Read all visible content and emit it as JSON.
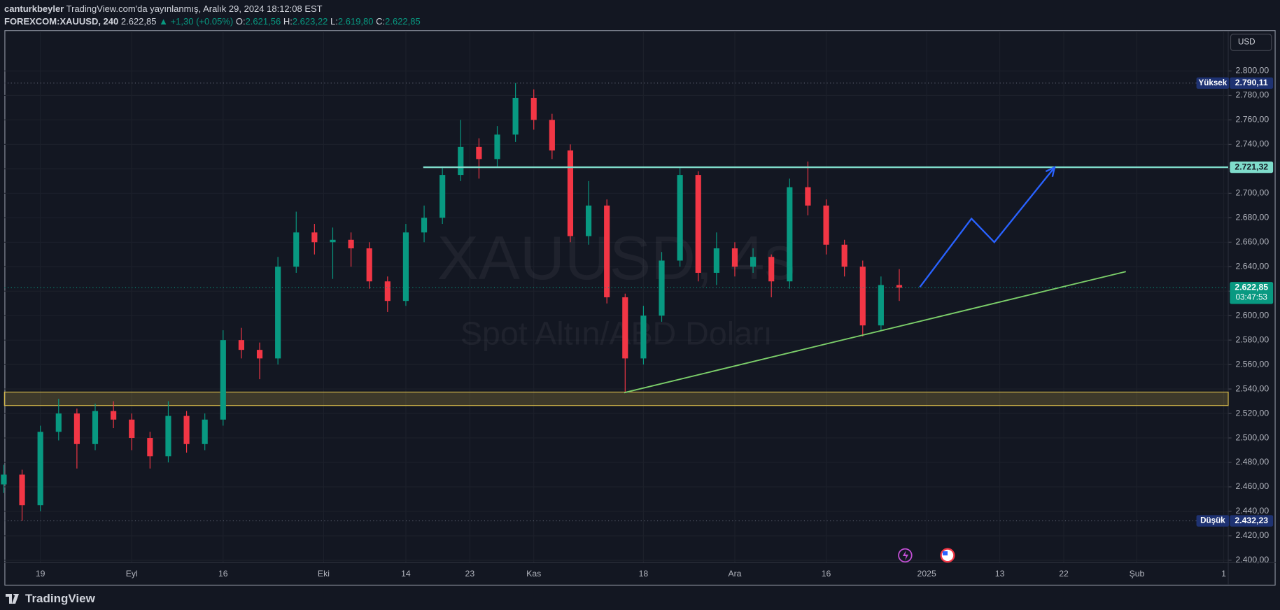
{
  "header": {
    "author": "canturkbeyler",
    "published": "TradingView.com'da yayınlanmış, Aralık 29, 2024 18:12:08 EST",
    "symbol": "FOREXCOM:XAUUSD, 240",
    "last": "2.622,85",
    "change": "▲ +1,30 (+0.05%)",
    "open_label": "O:",
    "open": "2.621,56",
    "high_label": "H:",
    "high": "2.623,22",
    "low_label": "L:",
    "low": "2.619,80",
    "close_label": "C:",
    "close": "2.622,85"
  },
  "footer": {
    "brand": "TradingView"
  },
  "chart_data": {
    "type": "candlestick",
    "watermark": "XAUUSD, 4s",
    "watermark_subtitle": "Spot Altın/ABD Doları",
    "currency": "USD",
    "up_color": "#089981",
    "down_color": "#f23645",
    "grid": true,
    "x": [
      -4,
      -2,
      0,
      2,
      4,
      6,
      8,
      10,
      12,
      14,
      16,
      18,
      20,
      22,
      24,
      26,
      28,
      30,
      32,
      34,
      36,
      38,
      40,
      42,
      44,
      46,
      48,
      50,
      52,
      54,
      56,
      58,
      60,
      62,
      64,
      66,
      68,
      70,
      72,
      74,
      76,
      78,
      80,
      82,
      84,
      86,
      88,
      90,
      92,
      94
    ],
    "open": [
      2462,
      2470,
      2445,
      2505,
      2520,
      2495,
      2522,
      2515,
      2500,
      2485,
      2518,
      2495,
      2515,
      2580,
      2572,
      2565,
      2640,
      2668,
      2660,
      2662,
      2655,
      2628,
      2612,
      2668,
      2680,
      2715,
      2738,
      2728,
      2748,
      2778,
      2760,
      2735,
      2665,
      2690,
      2615,
      2565,
      2600,
      2645,
      2715,
      2635,
      2655,
      2640,
      2648,
      2628,
      2705,
      2690,
      2658,
      2640,
      2592,
      2625
    ],
    "high": [
      2478,
      2474,
      2510,
      2532,
      2524,
      2528,
      2530,
      2520,
      2505,
      2530,
      2522,
      2520,
      2588,
      2590,
      2578,
      2648,
      2685,
      2675,
      2672,
      2668,
      2660,
      2632,
      2675,
      2690,
      2722,
      2760,
      2745,
      2755,
      2790.11,
      2785,
      2765,
      2740,
      2710,
      2695,
      2618,
      2608,
      2652,
      2721,
      2718,
      2668,
      2660,
      2655,
      2650,
      2712,
      2726,
      2695,
      2662,
      2645,
      2632,
      2638
    ],
    "low": [
      2455,
      2432.23,
      2440,
      2498,
      2475,
      2490,
      2508,
      2490,
      2475,
      2480,
      2488,
      2490,
      2510,
      2565,
      2548,
      2560,
      2635,
      2650,
      2630,
      2640,
      2622,
      2603,
      2608,
      2660,
      2675,
      2710,
      2712,
      2722,
      2742,
      2752,
      2728,
      2660,
      2658,
      2610,
      2537,
      2560,
      2595,
      2640,
      2628,
      2625,
      2632,
      2635,
      2615,
      2622,
      2682,
      2650,
      2632,
      2583,
      2588,
      2612
    ],
    "close": [
      2470,
      2445,
      2505,
      2520,
      2495,
      2522,
      2515,
      2500,
      2485,
      2518,
      2495,
      2515,
      2580,
      2572,
      2565,
      2640,
      2668,
      2660,
      2662,
      2655,
      2628,
      2612,
      2668,
      2680,
      2715,
      2738,
      2728,
      2748,
      2778,
      2760,
      2735,
      2665,
      2690,
      2615,
      2565,
      2600,
      2645,
      2715,
      2635,
      2655,
      2640,
      2648,
      2628,
      2705,
      2690,
      2658,
      2640,
      2592,
      2625,
      2622.85
    ],
    "xlim": [
      -3.93,
      130
    ],
    "xticks": [
      {
        "value": 0,
        "label": "19"
      },
      {
        "value": 10,
        "label": "Eyl"
      },
      {
        "value": 20,
        "label": "16"
      },
      {
        "value": 31,
        "label": "Eki"
      },
      {
        "value": 40,
        "label": "14"
      },
      {
        "value": 47,
        "label": "23"
      },
      {
        "value": 54,
        "label": "Kas"
      },
      {
        "value": 66,
        "label": "18"
      },
      {
        "value": 76,
        "label": "Ara"
      },
      {
        "value": 86,
        "label": "16"
      },
      {
        "value": 97,
        "label": "2025"
      },
      {
        "value": 105,
        "label": "13"
      },
      {
        "value": 112,
        "label": "22"
      },
      {
        "value": 120,
        "label": "Şub"
      },
      {
        "value": 129.5,
        "label": "1"
      }
    ],
    "ylim": [
      2398,
      2832.7
    ],
    "yticks": [
      {
        "value": 2400,
        "label": "2.400,00"
      },
      {
        "value": 2420,
        "label": "2.420,00"
      },
      {
        "value": 2440,
        "label": "2.440,00"
      },
      {
        "value": 2460,
        "label": "2.460,00"
      },
      {
        "value": 2480,
        "label": "2.480,00"
      },
      {
        "value": 2500,
        "label": "2.500,00"
      },
      {
        "value": 2520,
        "label": "2.520,00"
      },
      {
        "value": 2540,
        "label": "2.540,00"
      },
      {
        "value": 2560,
        "label": "2.560,00"
      },
      {
        "value": 2580,
        "label": "2.580,00"
      },
      {
        "value": 2600,
        "label": "2.600,00"
      },
      {
        "value": 2620,
        "label": "2.620,00"
      },
      {
        "value": 2640,
        "label": "2.640,00"
      },
      {
        "value": 2660,
        "label": "2.660,00"
      },
      {
        "value": 2680,
        "label": "2.680,00"
      },
      {
        "value": 2700,
        "label": "2.700,00"
      },
      {
        "value": 2720,
        "label": "2.720,00"
      },
      {
        "value": 2740,
        "label": "2.740,00"
      },
      {
        "value": 2760,
        "label": "2.760,00"
      },
      {
        "value": 2780,
        "label": "2.780,00"
      },
      {
        "value": 2800,
        "label": "2.800,00"
      }
    ],
    "price_tags": [
      {
        "name": "Yüksek",
        "value": 2790.11,
        "label": "2.790,11",
        "color": "#1e3272"
      },
      {
        "name": "Düşük",
        "value": 2432.23,
        "label": "2.432,23",
        "color": "#1e3272"
      }
    ],
    "current_price": {
      "value": 2622.85,
      "label": "2.622,85",
      "countdown": "03:47:53",
      "color": "#089981"
    },
    "drawings": {
      "resistance": {
        "price": 2721.32,
        "label": "2.721,32",
        "x_start": 41.9,
        "color": "#7fdccb"
      },
      "support_zone": {
        "low": 2526.5,
        "high": 2537.5,
        "color": "#d4b84a"
      },
      "trend_line": {
        "x": [
          63.9,
          118.8
        ],
        "y": [
          2537,
          2636
        ],
        "color": "#7ccf6a"
      },
      "projection": {
        "x": [
          96.25,
          101.9,
          104.4,
          111
        ],
        "y": [
          2623.3,
          2679.3,
          2660,
          2721.3
        ],
        "color": "#2962ff"
      }
    }
  }
}
